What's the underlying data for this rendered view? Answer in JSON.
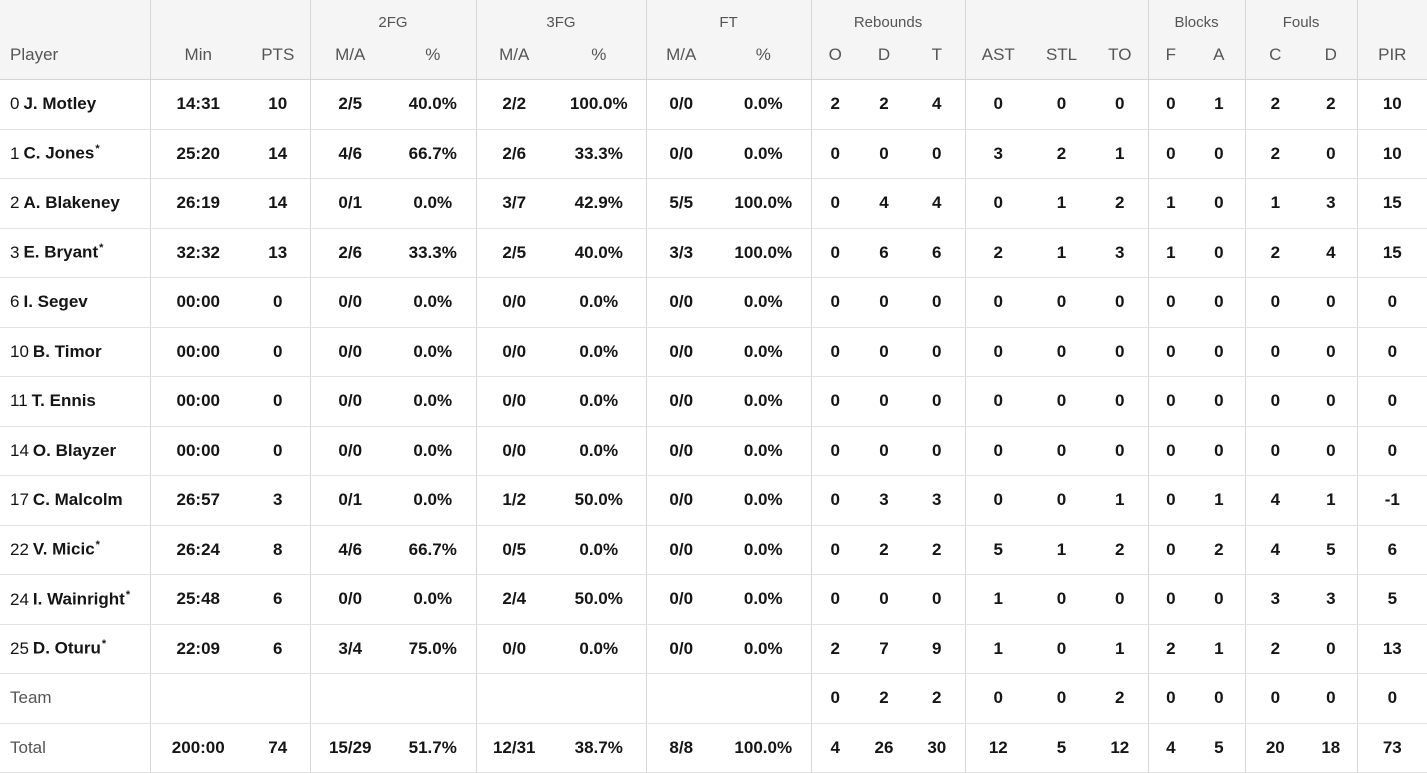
{
  "groups": {
    "fg2": "2FG",
    "fg3": "3FG",
    "ft": "FT",
    "rebounds": "Rebounds",
    "blocks": "Blocks",
    "fouls": "Fouls"
  },
  "columns": {
    "player": "Player",
    "min": "Min",
    "pts": "PTS",
    "fg2_ma": "M/A",
    "fg2_pct": "%",
    "fg3_ma": "M/A",
    "fg3_pct": "%",
    "ft_ma": "M/A",
    "ft_pct": "%",
    "reb_o": "O",
    "reb_d": "D",
    "reb_t": "T",
    "ast": "AST",
    "stl": "STL",
    "to": "TO",
    "blk_f": "F",
    "blk_a": "A",
    "foul_c": "C",
    "foul_d": "D",
    "pir": "PIR"
  },
  "rows": [
    {
      "num": "0",
      "name": "J. Motley",
      "starter": "",
      "min": "14:31",
      "pts": "10",
      "fg2_ma": "2/5",
      "fg2_pct": "40.0%",
      "fg3_ma": "2/2",
      "fg3_pct": "100.0%",
      "ft_ma": "0/0",
      "ft_pct": "0.0%",
      "reb_o": "2",
      "reb_d": "2",
      "reb_t": "4",
      "ast": "0",
      "stl": "0",
      "to": "0",
      "blk_f": "0",
      "blk_a": "1",
      "foul_c": "2",
      "foul_d": "2",
      "pir": "10"
    },
    {
      "num": "1",
      "name": "C. Jones",
      "starter": "*",
      "min": "25:20",
      "pts": "14",
      "fg2_ma": "4/6",
      "fg2_pct": "66.7%",
      "fg3_ma": "2/6",
      "fg3_pct": "33.3%",
      "ft_ma": "0/0",
      "ft_pct": "0.0%",
      "reb_o": "0",
      "reb_d": "0",
      "reb_t": "0",
      "ast": "3",
      "stl": "2",
      "to": "1",
      "blk_f": "0",
      "blk_a": "0",
      "foul_c": "2",
      "foul_d": "0",
      "pir": "10"
    },
    {
      "num": "2",
      "name": "A. Blakeney",
      "starter": "",
      "min": "26:19",
      "pts": "14",
      "fg2_ma": "0/1",
      "fg2_pct": "0.0%",
      "fg3_ma": "3/7",
      "fg3_pct": "42.9%",
      "ft_ma": "5/5",
      "ft_pct": "100.0%",
      "reb_o": "0",
      "reb_d": "4",
      "reb_t": "4",
      "ast": "0",
      "stl": "1",
      "to": "2",
      "blk_f": "1",
      "blk_a": "0",
      "foul_c": "1",
      "foul_d": "3",
      "pir": "15"
    },
    {
      "num": "3",
      "name": "E. Bryant",
      "starter": "*",
      "min": "32:32",
      "pts": "13",
      "fg2_ma": "2/6",
      "fg2_pct": "33.3%",
      "fg3_ma": "2/5",
      "fg3_pct": "40.0%",
      "ft_ma": "3/3",
      "ft_pct": "100.0%",
      "reb_o": "0",
      "reb_d": "6",
      "reb_t": "6",
      "ast": "2",
      "stl": "1",
      "to": "3",
      "blk_f": "1",
      "blk_a": "0",
      "foul_c": "2",
      "foul_d": "4",
      "pir": "15"
    },
    {
      "num": "6",
      "name": "I. Segev",
      "starter": "",
      "min": "00:00",
      "pts": "0",
      "fg2_ma": "0/0",
      "fg2_pct": "0.0%",
      "fg3_ma": "0/0",
      "fg3_pct": "0.0%",
      "ft_ma": "0/0",
      "ft_pct": "0.0%",
      "reb_o": "0",
      "reb_d": "0",
      "reb_t": "0",
      "ast": "0",
      "stl": "0",
      "to": "0",
      "blk_f": "0",
      "blk_a": "0",
      "foul_c": "0",
      "foul_d": "0",
      "pir": "0"
    },
    {
      "num": "10",
      "name": "B. Timor",
      "starter": "",
      "min": "00:00",
      "pts": "0",
      "fg2_ma": "0/0",
      "fg2_pct": "0.0%",
      "fg3_ma": "0/0",
      "fg3_pct": "0.0%",
      "ft_ma": "0/0",
      "ft_pct": "0.0%",
      "reb_o": "0",
      "reb_d": "0",
      "reb_t": "0",
      "ast": "0",
      "stl": "0",
      "to": "0",
      "blk_f": "0",
      "blk_a": "0",
      "foul_c": "0",
      "foul_d": "0",
      "pir": "0"
    },
    {
      "num": "11",
      "name": "T. Ennis",
      "starter": "",
      "min": "00:00",
      "pts": "0",
      "fg2_ma": "0/0",
      "fg2_pct": "0.0%",
      "fg3_ma": "0/0",
      "fg3_pct": "0.0%",
      "ft_ma": "0/0",
      "ft_pct": "0.0%",
      "reb_o": "0",
      "reb_d": "0",
      "reb_t": "0",
      "ast": "0",
      "stl": "0",
      "to": "0",
      "blk_f": "0",
      "blk_a": "0",
      "foul_c": "0",
      "foul_d": "0",
      "pir": "0"
    },
    {
      "num": "14",
      "name": "O. Blayzer",
      "starter": "",
      "min": "00:00",
      "pts": "0",
      "fg2_ma": "0/0",
      "fg2_pct": "0.0%",
      "fg3_ma": "0/0",
      "fg3_pct": "0.0%",
      "ft_ma": "0/0",
      "ft_pct": "0.0%",
      "reb_o": "0",
      "reb_d": "0",
      "reb_t": "0",
      "ast": "0",
      "stl": "0",
      "to": "0",
      "blk_f": "0",
      "blk_a": "0",
      "foul_c": "0",
      "foul_d": "0",
      "pir": "0"
    },
    {
      "num": "17",
      "name": "C. Malcolm",
      "starter": "",
      "min": "26:57",
      "pts": "3",
      "fg2_ma": "0/1",
      "fg2_pct": "0.0%",
      "fg3_ma": "1/2",
      "fg3_pct": "50.0%",
      "ft_ma": "0/0",
      "ft_pct": "0.0%",
      "reb_o": "0",
      "reb_d": "3",
      "reb_t": "3",
      "ast": "0",
      "stl": "0",
      "to": "1",
      "blk_f": "0",
      "blk_a": "1",
      "foul_c": "4",
      "foul_d": "1",
      "pir": "-1"
    },
    {
      "num": "22",
      "name": "V. Micic",
      "starter": "*",
      "min": "26:24",
      "pts": "8",
      "fg2_ma": "4/6",
      "fg2_pct": "66.7%",
      "fg3_ma": "0/5",
      "fg3_pct": "0.0%",
      "ft_ma": "0/0",
      "ft_pct": "0.0%",
      "reb_o": "0",
      "reb_d": "2",
      "reb_t": "2",
      "ast": "5",
      "stl": "1",
      "to": "2",
      "blk_f": "0",
      "blk_a": "2",
      "foul_c": "4",
      "foul_d": "5",
      "pir": "6"
    },
    {
      "num": "24",
      "name": "I. Wainright",
      "starter": "*",
      "min": "25:48",
      "pts": "6",
      "fg2_ma": "0/0",
      "fg2_pct": "0.0%",
      "fg3_ma": "2/4",
      "fg3_pct": "50.0%",
      "ft_ma": "0/0",
      "ft_pct": "0.0%",
      "reb_o": "0",
      "reb_d": "0",
      "reb_t": "0",
      "ast": "1",
      "stl": "0",
      "to": "0",
      "blk_f": "0",
      "blk_a": "0",
      "foul_c": "3",
      "foul_d": "3",
      "pir": "5"
    },
    {
      "num": "25",
      "name": "D. Oturu",
      "starter": "*",
      "min": "22:09",
      "pts": "6",
      "fg2_ma": "3/4",
      "fg2_pct": "75.0%",
      "fg3_ma": "0/0",
      "fg3_pct": "0.0%",
      "ft_ma": "0/0",
      "ft_pct": "0.0%",
      "reb_o": "2",
      "reb_d": "7",
      "reb_t": "9",
      "ast": "1",
      "stl": "0",
      "to": "1",
      "blk_f": "2",
      "blk_a": "1",
      "foul_c": "2",
      "foul_d": "0",
      "pir": "13"
    }
  ],
  "team": {
    "label": "Team",
    "reb_o": "0",
    "reb_d": "2",
    "reb_t": "2",
    "ast": "0",
    "stl": "0",
    "to": "2",
    "blk_f": "0",
    "blk_a": "0",
    "foul_c": "0",
    "foul_d": "0",
    "pir": "0"
  },
  "total": {
    "label": "Total",
    "min": "200:00",
    "pts": "74",
    "fg2_ma": "15/29",
    "fg2_pct": "51.7%",
    "fg3_ma": "12/31",
    "fg3_pct": "38.7%",
    "ft_ma": "8/8",
    "ft_pct": "100.0%",
    "reb_o": "4",
    "reb_d": "26",
    "reb_t": "30",
    "ast": "12",
    "stl": "5",
    "to": "12",
    "blk_f": "4",
    "blk_a": "5",
    "foul_c": "20",
    "foul_d": "18",
    "pir": "73"
  }
}
